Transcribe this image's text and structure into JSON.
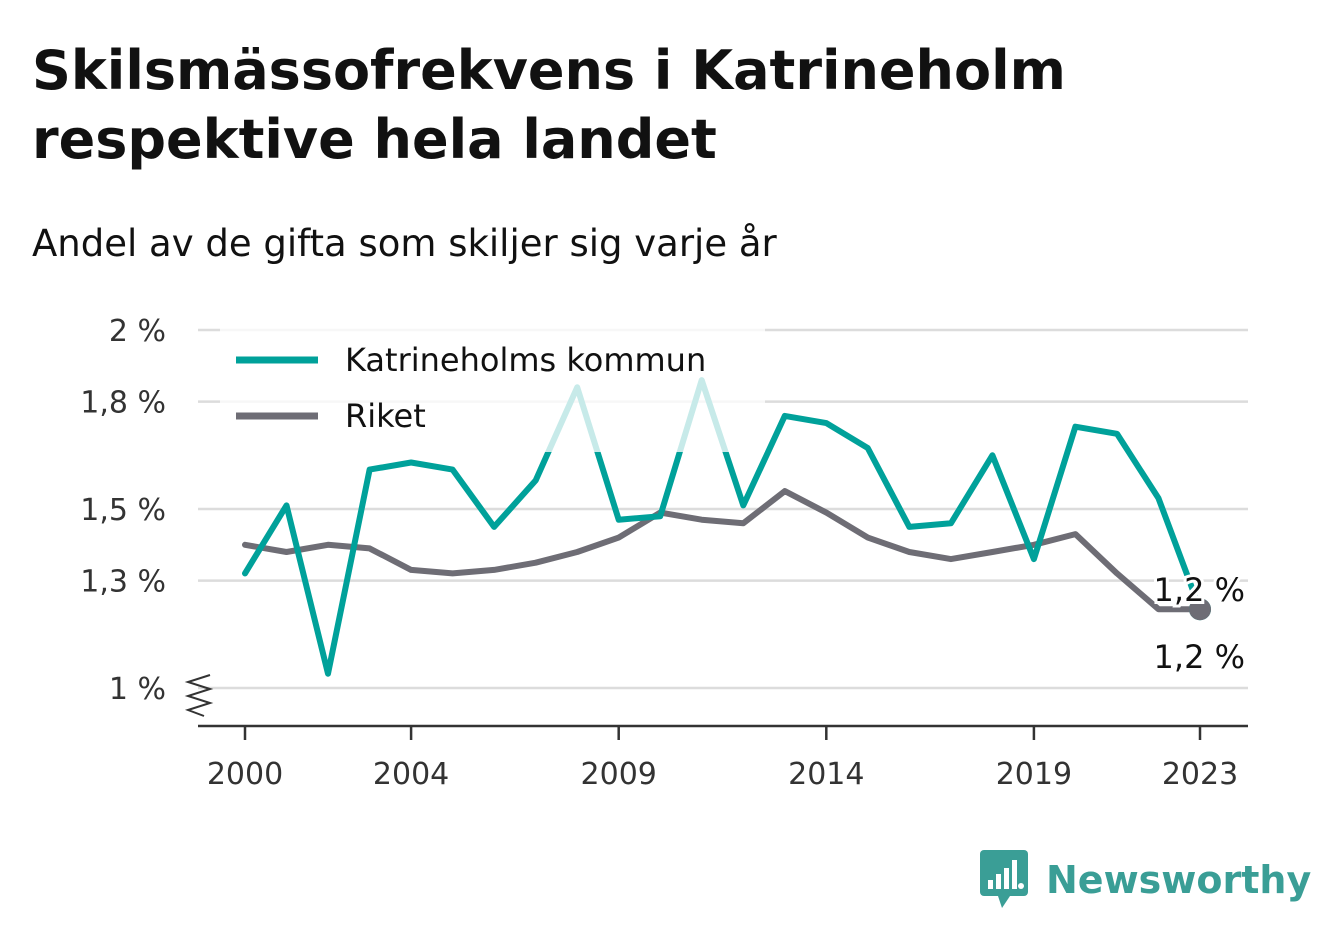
{
  "title": "Skilsmässofrekvens i Katrineholm respektive hela landet",
  "subtitle": "Andel av de gifta som skiljer sig varje år",
  "brand": "Newsworthy",
  "chart_data": {
    "type": "line",
    "x": [
      2000,
      2001,
      2002,
      2003,
      2004,
      2005,
      2006,
      2007,
      2008,
      2009,
      2010,
      2011,
      2012,
      2013,
      2014,
      2015,
      2016,
      2017,
      2018,
      2019,
      2020,
      2021,
      2022,
      2023
    ],
    "xticks": [
      "2000",
      "2004",
      "2009",
      "2014",
      "2019",
      "2023"
    ],
    "yticks": [
      "1 %",
      "1,3 %",
      "1,5 %",
      "1,8 %",
      "2 %"
    ],
    "ylim": [
      1.0,
      2.0
    ],
    "grid": true,
    "legend_position": "top-left",
    "series": [
      {
        "name": "Katrineholms kommun",
        "color": "#00a19a",
        "values": [
          1.32,
          1.51,
          1.04,
          1.61,
          1.63,
          1.61,
          1.45,
          1.58,
          1.84,
          1.47,
          1.48,
          1.86,
          1.51,
          1.76,
          1.74,
          1.67,
          1.45,
          1.46,
          1.65,
          1.36,
          1.73,
          1.71,
          1.53,
          1.22
        ],
        "end_label": "1,2 %"
      },
      {
        "name": "Riket",
        "color": "#6e6d75",
        "values": [
          1.4,
          1.38,
          1.4,
          1.39,
          1.33,
          1.32,
          1.33,
          1.35,
          1.38,
          1.42,
          1.49,
          1.47,
          1.46,
          1.55,
          1.49,
          1.42,
          1.38,
          1.36,
          1.38,
          1.4,
          1.43,
          1.32,
          1.22,
          1.22
        ],
        "end_label": "1,2 %"
      }
    ]
  }
}
